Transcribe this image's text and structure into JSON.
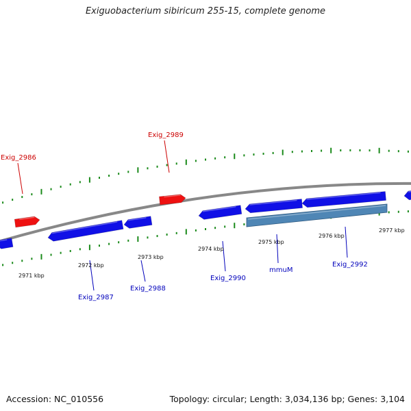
{
  "title": "Exiguobacterium sibiricum 255-15, complete genome",
  "footer": {
    "accession": "Accession: NC_010556",
    "topology": "Topology: circular; Length: 3,034,136 bp; Genes: 3,104"
  },
  "colors": {
    "forward_gene": "#ee1111",
    "reverse_gene": "#1010e6",
    "operon": "#4f86b5",
    "backbone": "#888888",
    "tick": "#1a8a1a",
    "forward_label": "#cc0000",
    "reverse_label": "#0000bb"
  },
  "scale_labels": [
    "2971 kbp",
    "2972 kbp",
    "2973 kbp",
    "2974 kbp",
    "2975 kbp",
    "2976 kbp",
    "2977 kbp"
  ],
  "forward_genes": [
    {
      "label": "Exig_2986"
    },
    {
      "label": "Exig_2989"
    }
  ],
  "reverse_genes": [
    {
      "label": "Exig_2987"
    },
    {
      "label": "Exig_2988"
    },
    {
      "label": "Exig_2990"
    },
    {
      "label": "mmuM"
    },
    {
      "label": "Exig_2992"
    }
  ]
}
